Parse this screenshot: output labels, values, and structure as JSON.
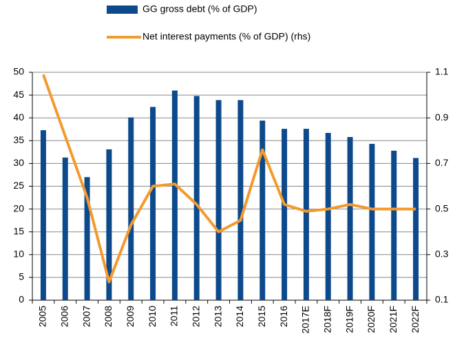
{
  "chart_data": {
    "type": "bar-line",
    "categories": [
      "2005",
      "2006",
      "2007",
      "2008",
      "2009",
      "2010",
      "2011",
      "2012",
      "2013",
      "2014",
      "2015",
      "2016",
      "2017E",
      "2018F",
      "2019F",
      "2020F",
      "2021F",
      "2022F"
    ],
    "series": [
      {
        "name": "GG gross debt (% of GDP)",
        "type": "bar",
        "color": "#0d4a8c",
        "values": [
          37.3,
          31.3,
          27,
          33.1,
          40.1,
          42.4,
          46,
          44.8,
          43.9,
          43.9,
          39.4,
          37.6,
          37.6,
          36.7,
          35.8,
          34.3,
          32.8,
          31.2
        ]
      },
      {
        "name": "Net interest payments (% of GDP) (rhs)",
        "type": "line",
        "axis": "y2",
        "color": "#f39a2e",
        "values": [
          1.09,
          0.82,
          0.55,
          0.18,
          0.43,
          0.6,
          0.61,
          0.52,
          0.4,
          0.45,
          0.76,
          0.52,
          0.49,
          0.5,
          0.52,
          0.5,
          0.5,
          0.5
        ]
      }
    ],
    "ylim": [
      0,
      50
    ],
    "yticks": [
      0,
      5,
      10,
      15,
      20,
      25,
      30,
      35,
      40,
      45,
      50
    ],
    "y2lim": [
      0.1,
      1.1
    ],
    "y2ticks": [
      0.1,
      0.3,
      0.5,
      0.7,
      0.9,
      1.1
    ],
    "grid": true
  }
}
